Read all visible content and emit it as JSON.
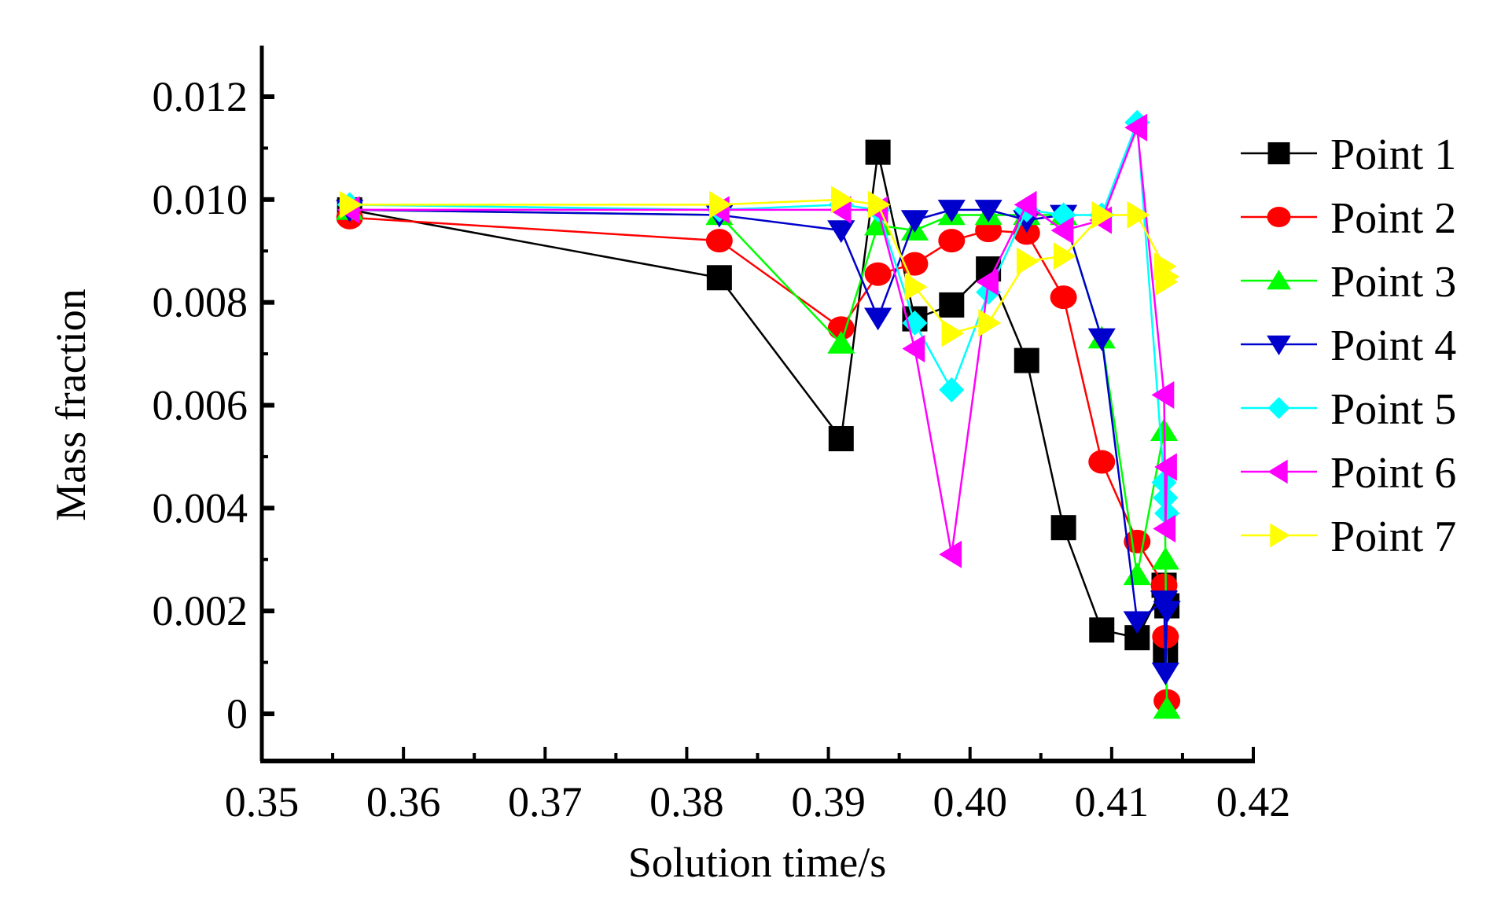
{
  "chart_data": {
    "type": "line",
    "title": "",
    "xlabel": "Solution time/s",
    "ylabel": "Mass fraction",
    "xlim": [
      0.35,
      0.42
    ],
    "ylim": [
      -0.00095,
      0.013
    ],
    "xticks": [
      "0.35",
      "0.36",
      "0.37",
      "0.38",
      "0.39",
      "0.40",
      "0.41",
      "0.42"
    ],
    "yticks": [
      "0",
      "0.002",
      "0.004",
      "0.006",
      "0.008",
      "0.010",
      "0.012"
    ],
    "grid": false,
    "legend_position": "right",
    "x": [
      0.3562,
      0.3823,
      0.3909,
      0.3935,
      0.3961,
      0.3987,
      0.4013,
      0.404,
      0.4066,
      0.4093,
      0.4118,
      0.4137,
      0.4138,
      0.4139
    ],
    "series": [
      {
        "name": "Point 1",
        "color": "#000000",
        "marker": "square",
        "values": [
          0.0098,
          0.00848,
          0.00535,
          0.01092,
          0.00768,
          0.00795,
          0.00865,
          0.00687,
          0.00362,
          0.00163,
          0.00148,
          0.0025,
          0.0012,
          0.0021
        ]
      },
      {
        "name": "Point 2",
        "color": "#ff0000",
        "marker": "circle",
        "values": [
          0.00965,
          0.0092,
          0.0075,
          0.00855,
          0.00875,
          0.0092,
          0.0094,
          0.00935,
          0.0081,
          0.0049,
          0.00335,
          0.0025,
          0.0015,
          0.00025
        ]
      },
      {
        "name": "Point 3",
        "color": "#00ff00",
        "marker": "triangle-up",
        "values": [
          0.0098,
          0.0097,
          0.0072,
          0.0095,
          0.0094,
          0.0097,
          0.0097,
          0.0097,
          0.0097,
          0.0073,
          0.0027,
          0.0055,
          0.003,
          0.0001
        ]
      },
      {
        "name": "Point 4",
        "color": "#0000cc",
        "marker": "triangle-down",
        "values": [
          0.0098,
          0.0097,
          0.0094,
          0.0077,
          0.0096,
          0.0098,
          0.0098,
          0.0096,
          0.0097,
          0.0073,
          0.0018,
          0.0022,
          0.0008,
          0.002
        ]
      },
      {
        "name": "Point 5",
        "color": "#00ffff",
        "marker": "diamond",
        "values": [
          0.0099,
          0.0098,
          0.0099,
          0.0098,
          0.0076,
          0.0063,
          0.0082,
          0.0098,
          0.0097,
          0.0097,
          0.0115,
          0.0045,
          0.0042,
          0.0039
        ]
      },
      {
        "name": "Point 6",
        "color": "#ff00ff",
        "marker": "triangle-left",
        "values": [
          0.0098,
          0.0098,
          0.0098,
          0.0098,
          0.0071,
          0.0031,
          0.0084,
          0.0099,
          0.0094,
          0.0096,
          0.0114,
          0.0062,
          0.0036,
          0.0048
        ]
      },
      {
        "name": "Point 7",
        "color": "#ffff00",
        "marker": "triangle-right",
        "values": [
          0.0099,
          0.0099,
          0.01,
          0.0099,
          0.0083,
          0.0074,
          0.0076,
          0.0088,
          0.0089,
          0.0097,
          0.0097,
          0.0087,
          0.0084,
          0.0085
        ]
      }
    ]
  }
}
